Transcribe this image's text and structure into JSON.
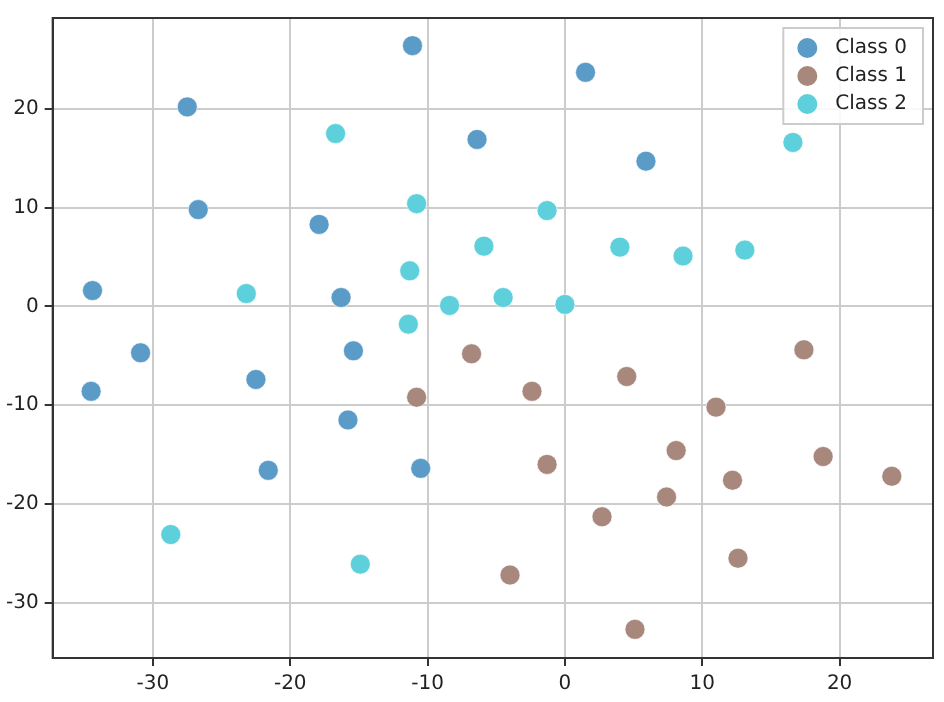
{
  "chart_data": {
    "type": "scatter",
    "xlim": [
      -37.3,
      26.8
    ],
    "ylim": [
      -35.6,
      29.2
    ],
    "xticks": [
      -30,
      -20,
      -10,
      0,
      10,
      20
    ],
    "yticks": [
      -30,
      -20,
      -10,
      0,
      10,
      20
    ],
    "grid": true,
    "legend": "top right",
    "marker": "circle",
    "series": [
      {
        "name": "Class 0",
        "color": "#5b9bc8",
        "x": [
          -11.1,
          -27.5,
          -6.4,
          -26.7,
          -17.9,
          -34.4,
          -16.3,
          1.5,
          5.9,
          -30.9,
          -34.5,
          -22.5,
          -15.4,
          -15.8,
          -21.6,
          -10.5
        ],
        "values": [
          26.4,
          20.2,
          16.9,
          9.8,
          8.3,
          1.6,
          0.9,
          23.7,
          14.7,
          -4.7,
          -8.6,
          -7.4,
          -4.5,
          -11.5,
          -16.6,
          -16.4
        ]
      },
      {
        "name": "Class 1",
        "color": "#a8877d",
        "x": [
          17.4,
          -6.8,
          -10.8,
          4.5,
          -2.4,
          11.0,
          -1.3,
          8.1,
          18.8,
          12.2,
          23.8,
          7.4,
          2.7,
          12.6,
          -4.0,
          5.1
        ],
        "values": [
          -4.4,
          -4.8,
          -9.2,
          -7.1,
          -8.6,
          -10.2,
          -16.0,
          -14.6,
          -15.2,
          -17.6,
          -17.2,
          -19.3,
          -21.3,
          -25.5,
          -27.2,
          -32.7
        ]
      },
      {
        "name": "Class 2",
        "color": "#5dd0dc",
        "x": [
          -16.7,
          -10.8,
          -11.3,
          -23.2,
          -8.4,
          -11.4,
          16.6,
          -1.3,
          -5.9,
          4.0,
          8.6,
          13.1,
          -4.5,
          0.0,
          -28.7,
          -14.9
        ],
        "values": [
          17.5,
          10.4,
          3.6,
          1.3,
          0.1,
          -1.8,
          16.6,
          9.7,
          6.1,
          6.0,
          5.1,
          5.7,
          0.9,
          0.2,
          -23.1,
          -26.1
        ]
      }
    ]
  }
}
